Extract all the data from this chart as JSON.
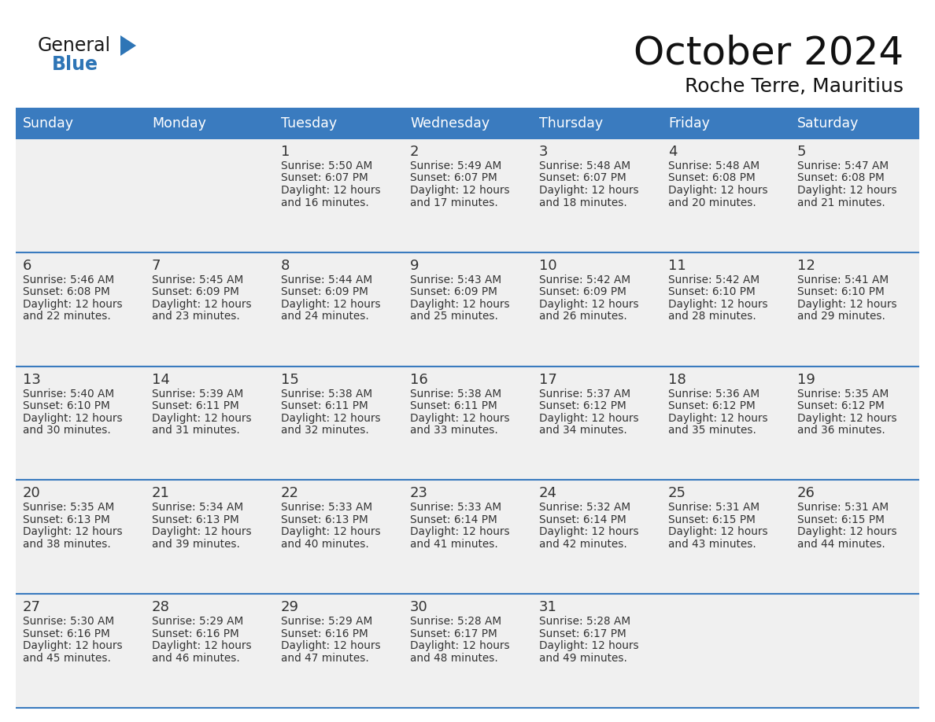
{
  "title": "October 2024",
  "subtitle": "Roche Terre, Mauritius",
  "days_of_week": [
    "Sunday",
    "Monday",
    "Tuesday",
    "Wednesday",
    "Thursday",
    "Friday",
    "Saturday"
  ],
  "header_bg_color": "#3A7BBF",
  "header_text_color": "#FFFFFF",
  "cell_bg_color": "#F0F0F0",
  "row_line_color": "#3A7BBF",
  "text_color": "#333333",
  "calendar_data": [
    [
      null,
      null,
      {
        "day": 1,
        "sunrise": "5:50 AM",
        "sunset": "6:07 PM",
        "daylight_suffix": "16 minutes."
      },
      {
        "day": 2,
        "sunrise": "5:49 AM",
        "sunset": "6:07 PM",
        "daylight_suffix": "17 minutes."
      },
      {
        "day": 3,
        "sunrise": "5:48 AM",
        "sunset": "6:07 PM",
        "daylight_suffix": "18 minutes."
      },
      {
        "day": 4,
        "sunrise": "5:48 AM",
        "sunset": "6:08 PM",
        "daylight_suffix": "20 minutes."
      },
      {
        "day": 5,
        "sunrise": "5:47 AM",
        "sunset": "6:08 PM",
        "daylight_suffix": "21 minutes."
      }
    ],
    [
      {
        "day": 6,
        "sunrise": "5:46 AM",
        "sunset": "6:08 PM",
        "daylight_suffix": "22 minutes."
      },
      {
        "day": 7,
        "sunrise": "5:45 AM",
        "sunset": "6:09 PM",
        "daylight_suffix": "23 minutes."
      },
      {
        "day": 8,
        "sunrise": "5:44 AM",
        "sunset": "6:09 PM",
        "daylight_suffix": "24 minutes."
      },
      {
        "day": 9,
        "sunrise": "5:43 AM",
        "sunset": "6:09 PM",
        "daylight_suffix": "25 minutes."
      },
      {
        "day": 10,
        "sunrise": "5:42 AM",
        "sunset": "6:09 PM",
        "daylight_suffix": "26 minutes."
      },
      {
        "day": 11,
        "sunrise": "5:42 AM",
        "sunset": "6:10 PM",
        "daylight_suffix": "28 minutes."
      },
      {
        "day": 12,
        "sunrise": "5:41 AM",
        "sunset": "6:10 PM",
        "daylight_suffix": "29 minutes."
      }
    ],
    [
      {
        "day": 13,
        "sunrise": "5:40 AM",
        "sunset": "6:10 PM",
        "daylight_suffix": "30 minutes."
      },
      {
        "day": 14,
        "sunrise": "5:39 AM",
        "sunset": "6:11 PM",
        "daylight_suffix": "31 minutes."
      },
      {
        "day": 15,
        "sunrise": "5:38 AM",
        "sunset": "6:11 PM",
        "daylight_suffix": "32 minutes."
      },
      {
        "day": 16,
        "sunrise": "5:38 AM",
        "sunset": "6:11 PM",
        "daylight_suffix": "33 minutes."
      },
      {
        "day": 17,
        "sunrise": "5:37 AM",
        "sunset": "6:12 PM",
        "daylight_suffix": "34 minutes."
      },
      {
        "day": 18,
        "sunrise": "5:36 AM",
        "sunset": "6:12 PM",
        "daylight_suffix": "35 minutes."
      },
      {
        "day": 19,
        "sunrise": "5:35 AM",
        "sunset": "6:12 PM",
        "daylight_suffix": "36 minutes."
      }
    ],
    [
      {
        "day": 20,
        "sunrise": "5:35 AM",
        "sunset": "6:13 PM",
        "daylight_suffix": "38 minutes."
      },
      {
        "day": 21,
        "sunrise": "5:34 AM",
        "sunset": "6:13 PM",
        "daylight_suffix": "39 minutes."
      },
      {
        "day": 22,
        "sunrise": "5:33 AM",
        "sunset": "6:13 PM",
        "daylight_suffix": "40 minutes."
      },
      {
        "day": 23,
        "sunrise": "5:33 AM",
        "sunset": "6:14 PM",
        "daylight_suffix": "41 minutes."
      },
      {
        "day": 24,
        "sunrise": "5:32 AM",
        "sunset": "6:14 PM",
        "daylight_suffix": "42 minutes."
      },
      {
        "day": 25,
        "sunrise": "5:31 AM",
        "sunset": "6:15 PM",
        "daylight_suffix": "43 minutes."
      },
      {
        "day": 26,
        "sunrise": "5:31 AM",
        "sunset": "6:15 PM",
        "daylight_suffix": "44 minutes."
      }
    ],
    [
      {
        "day": 27,
        "sunrise": "5:30 AM",
        "sunset": "6:16 PM",
        "daylight_suffix": "45 minutes."
      },
      {
        "day": 28,
        "sunrise": "5:29 AM",
        "sunset": "6:16 PM",
        "daylight_suffix": "46 minutes."
      },
      {
        "day": 29,
        "sunrise": "5:29 AM",
        "sunset": "6:16 PM",
        "daylight_suffix": "47 minutes."
      },
      {
        "day": 30,
        "sunrise": "5:28 AM",
        "sunset": "6:17 PM",
        "daylight_suffix": "48 minutes."
      },
      {
        "day": 31,
        "sunrise": "5:28 AM",
        "sunset": "6:17 PM",
        "daylight_suffix": "49 minutes."
      },
      null,
      null
    ]
  ],
  "logo_general_color": "#1a1a1a",
  "logo_blue_color": "#2E75B6",
  "figsize": [
    11.88,
    9.18
  ],
  "dpi": 100
}
